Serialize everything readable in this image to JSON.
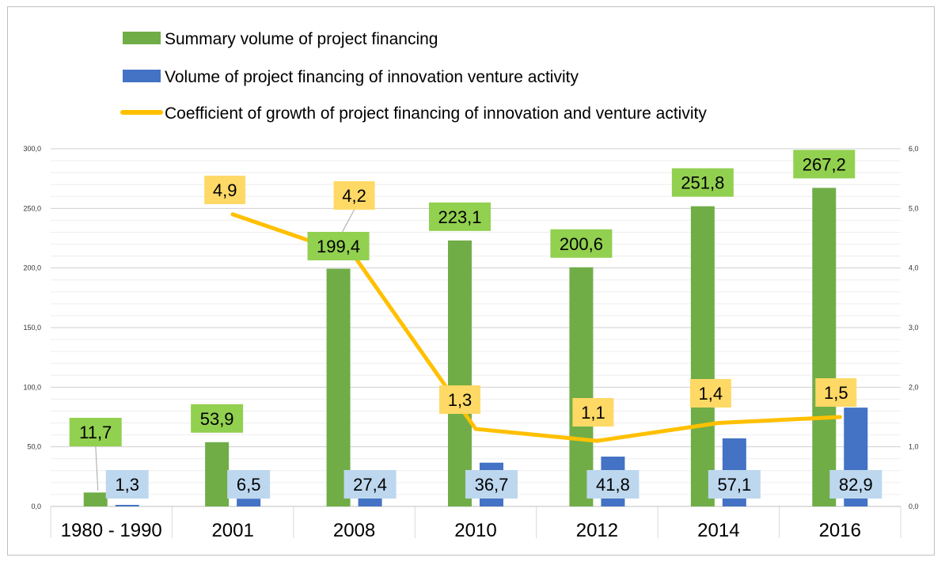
{
  "chart_data": {
    "type": "bar",
    "categories": [
      "1980 - 1990",
      "2001",
      "2008",
      "2010",
      "2012",
      "2014",
      "2016"
    ],
    "series": [
      {
        "name": "Summary volume of project financing",
        "type": "bar",
        "axis": "left",
        "color": "#70ad47",
        "values": [
          11.7,
          53.9,
          199.4,
          223.1,
          200.6,
          251.8,
          267.2
        ],
        "labels": [
          "11,7",
          "53,9",
          "199,4",
          "223,1",
          "200,6",
          "251,8",
          "267,2"
        ]
      },
      {
        "name": "Volume of project financing of innovation venture activity",
        "type": "bar",
        "axis": "left",
        "color": "#4472c4",
        "values": [
          1.3,
          6.5,
          27.4,
          36.7,
          41.8,
          57.1,
          82.9
        ],
        "labels": [
          "1,3",
          "6,5",
          "27,4",
          "36,7",
          "41,8",
          "57,1",
          "82,9"
        ]
      },
      {
        "name": "Coefficient of growth of project financing of innovation and venture activity",
        "type": "line",
        "axis": "right",
        "color": "#ffc000",
        "values": [
          null,
          4.9,
          4.2,
          1.3,
          1.1,
          1.4,
          1.5
        ],
        "labels": [
          "",
          "4,9",
          "4,2",
          "1,3",
          "1,1",
          "1,4",
          "1,5"
        ]
      }
    ],
    "y_left": {
      "min": 0,
      "max": 300,
      "ticks": [
        "0,0",
        "50,0",
        "100,0",
        "150,0",
        "200,0",
        "250,0",
        "300,0"
      ]
    },
    "y_right": {
      "min": 0,
      "max": 6,
      "ticks": [
        "0,0",
        "1,0",
        "2,0",
        "3,0",
        "4,0",
        "5,0",
        "6,0"
      ]
    },
    "grid": true,
    "legend": "top",
    "label_colors": {
      "bar1": "#92d050",
      "bar2": "#bdd7ee",
      "line": "#ffd966"
    }
  }
}
